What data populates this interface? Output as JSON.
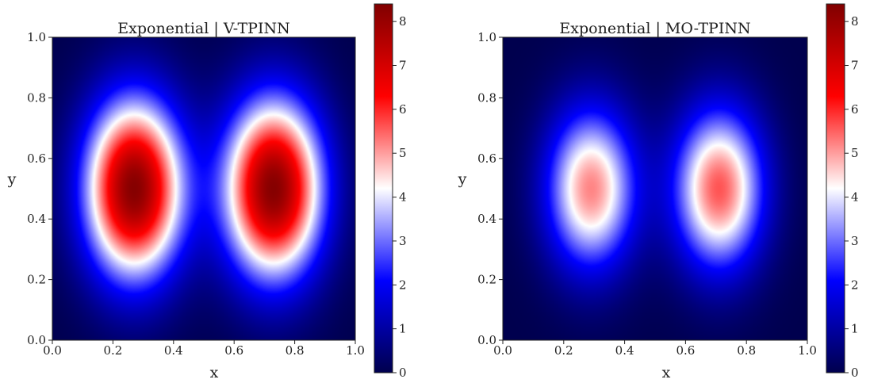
{
  "chart_data": [
    {
      "type": "heatmap",
      "title": "Exponential | V-TPINN",
      "xlabel": "x",
      "ylabel": "y",
      "xlim": [
        0.0,
        1.0
      ],
      "ylim": [
        0.0,
        1.0
      ],
      "xticks": [
        "0.0",
        "0.2",
        "0.4",
        "0.6",
        "0.8",
        "1.0"
      ],
      "yticks": [
        "0.0",
        "0.2",
        "0.4",
        "0.6",
        "0.8",
        "1.0"
      ],
      "colormap": "seismic",
      "colorbar": {
        "min": 0,
        "max": 8.4,
        "ticks": [
          "0",
          "1",
          "2",
          "3",
          "4",
          "5",
          "6",
          "7",
          "8"
        ]
      },
      "peaks": [
        {
          "x": 0.27,
          "y": 0.5,
          "value": 8.3
        },
        {
          "x": 0.73,
          "y": 0.5,
          "value": 8.3
        }
      ]
    },
    {
      "type": "heatmap",
      "title": "Exponential | MO-TPINN",
      "xlabel": "x",
      "ylabel": "y",
      "xlim": [
        0.0,
        1.0
      ],
      "ylim": [
        0.0,
        1.0
      ],
      "xticks": [
        "0.0",
        "0.2",
        "0.4",
        "0.6",
        "0.8",
        "1.0"
      ],
      "yticks": [
        "0.0",
        "0.2",
        "0.4",
        "0.6",
        "0.8",
        "1.0"
      ],
      "colormap": "seismic",
      "colorbar": {
        "min": 0,
        "max": 8.4,
        "ticks": [
          "0",
          "1",
          "2",
          "3",
          "4",
          "5",
          "6",
          "7",
          "8"
        ]
      },
      "peaks": [
        {
          "x": 0.29,
          "y": 0.5,
          "value": 5.2
        },
        {
          "x": 0.71,
          "y": 0.5,
          "value": 5.6
        }
      ]
    }
  ]
}
